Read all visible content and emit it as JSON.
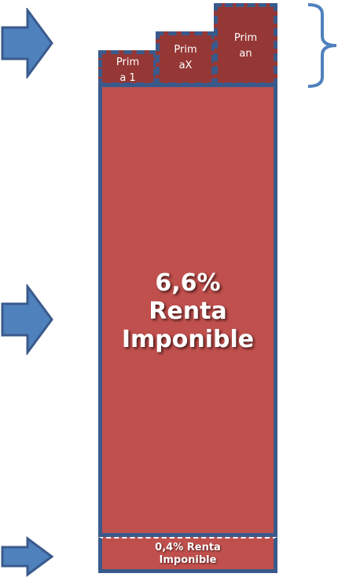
{
  "primas": [
    {
      "line1": "Prim",
      "line2": "a 1"
    },
    {
      "line1": "Prim",
      "line2": "aX"
    },
    {
      "line1": "Prim",
      "line2": "an"
    }
  ],
  "main_block": {
    "percent": "6,6%",
    "line2": "Renta",
    "line3": "Imponible"
  },
  "bottom_block": {
    "line1": "0,4% Renta",
    "line2": "Imponible"
  },
  "colors": {
    "fill": "#c0504d",
    "fill_dark": "#953735",
    "border": "#3a5a8c",
    "arrow": "#4f81bd"
  }
}
